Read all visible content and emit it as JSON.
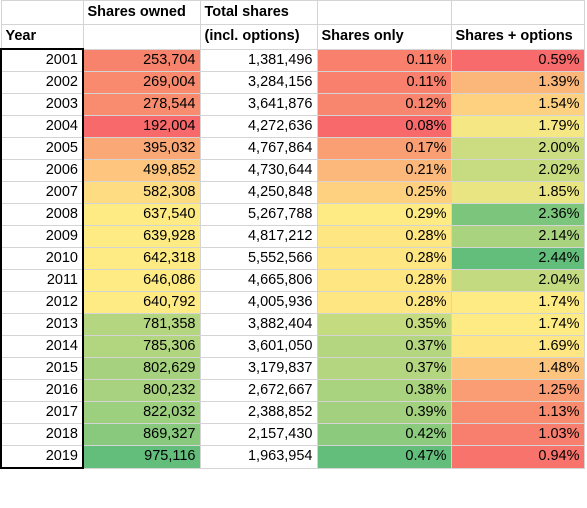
{
  "header": {
    "row1": [
      "",
      "Shares owned",
      "Total shares",
      "",
      ""
    ],
    "row2": [
      "Year",
      "",
      "(incl. options)",
      "Shares only",
      "Shares + options"
    ]
  },
  "rows": [
    {
      "year": "2001",
      "owned": "253,704",
      "total": "1,381,496",
      "only": "0.11%",
      "plus": "0.59%",
      "c_owned": "#f8836c",
      "c_only": "#f8806c",
      "c_plus": "#f86b6c"
    },
    {
      "year": "2002",
      "owned": "269,004",
      "total": "3,284,156",
      "only": "0.11%",
      "plus": "1.39%",
      "c_owned": "#f98a6e",
      "c_only": "#f8806c",
      "c_plus": "#fbb77a"
    },
    {
      "year": "2003",
      "owned": "278,544",
      "total": "3,641,876",
      "only": "0.12%",
      "plus": "1.54%",
      "c_owned": "#f98c6f",
      "c_only": "#f8856e",
      "c_plus": "#fdd17f"
    },
    {
      "year": "2004",
      "owned": "192,004",
      "total": "4,272,636",
      "only": "0.08%",
      "plus": "1.79%",
      "c_owned": "#f8696b",
      "c_only": "#f8696b",
      "c_plus": "#f5e784"
    },
    {
      "year": "2005",
      "owned": "395,032",
      "total": "4,767,864",
      "only": "0.17%",
      "plus": "2.00%",
      "c_owned": "#fba877",
      "c_only": "#fa9e74",
      "c_plus": "#cbdc81"
    },
    {
      "year": "2006",
      "owned": "499,852",
      "total": "4,730,644",
      "only": "0.21%",
      "plus": "2.02%",
      "c_owned": "#fdc57d",
      "c_only": "#fcb87a",
      "c_plus": "#c7db80"
    },
    {
      "year": "2007",
      "owned": "582,308",
      "total": "4,250,848",
      "only": "0.25%",
      "plus": "1.85%",
      "c_owned": "#fedc81",
      "c_only": "#fdd17f",
      "c_plus": "#e9e583"
    },
    {
      "year": "2008",
      "owned": "637,540",
      "total": "5,267,788",
      "only": "0.29%",
      "plus": "2.36%",
      "c_owned": "#ffeb84",
      "c_only": "#ffeb84",
      "c_plus": "#7bc67c"
    },
    {
      "year": "2009",
      "owned": "639,928",
      "total": "4,817,212",
      "only": "0.28%",
      "plus": "2.14%",
      "c_owned": "#ffeb84",
      "c_only": "#fee683",
      "c_plus": "#aad37f"
    },
    {
      "year": "2010",
      "owned": "642,318",
      "total": "5,552,566",
      "only": "0.28%",
      "plus": "2.44%",
      "c_owned": "#ffeb84",
      "c_only": "#fee683",
      "c_plus": "#63be7b"
    },
    {
      "year": "2011",
      "owned": "646,086",
      "total": "4,665,806",
      "only": "0.28%",
      "plus": "2.04%",
      "c_owned": "#ffeb84",
      "c_only": "#fee683",
      "c_plus": "#c3da80"
    },
    {
      "year": "2012",
      "owned": "640,792",
      "total": "4,005,936",
      "only": "0.28%",
      "plus": "1.74%",
      "c_owned": "#ffeb84",
      "c_only": "#fee683",
      "c_plus": "#ffeb84"
    },
    {
      "year": "2013",
      "owned": "781,358",
      "total": "3,882,404",
      "only": "0.35%",
      "plus": "1.74%",
      "c_owned": "#b4d680",
      "c_only": "#c4db80",
      "c_plus": "#ffeb84"
    },
    {
      "year": "2014",
      "owned": "785,306",
      "total": "3,601,050",
      "only": "0.37%",
      "plus": "1.69%",
      "c_owned": "#b2d580",
      "c_only": "#b4d680",
      "c_plus": "#fee683"
    },
    {
      "year": "2015",
      "owned": "802,629",
      "total": "3,179,837",
      "only": "0.37%",
      "plus": "1.48%",
      "c_owned": "#a6d27f",
      "c_only": "#b4d680",
      "c_plus": "#fcc47c"
    },
    {
      "year": "2016",
      "owned": "800,232",
      "total": "2,672,667",
      "only": "0.38%",
      "plus": "1.25%",
      "c_owned": "#a8d27f",
      "c_only": "#aad37f",
      "c_plus": "#fa9c74"
    },
    {
      "year": "2017",
      "owned": "822,032",
      "total": "2,388,852",
      "only": "0.39%",
      "plus": "1.13%",
      "c_owned": "#9ccf7e",
      "c_only": "#a2d07e",
      "c_plus": "#f98b6f"
    },
    {
      "year": "2018",
      "owned": "869,327",
      "total": "2,157,430",
      "only": "0.42%",
      "plus": "1.03%",
      "c_owned": "#88c97d",
      "c_only": "#8ccb7d",
      "c_plus": "#f87e6d"
    },
    {
      "year": "2019",
      "owned": "975,116",
      "total": "1,963,954",
      "only": "0.47%",
      "plus": "0.94%",
      "c_owned": "#63be7b",
      "c_only": "#63be7b",
      "c_plus": "#f8736c"
    }
  ]
}
